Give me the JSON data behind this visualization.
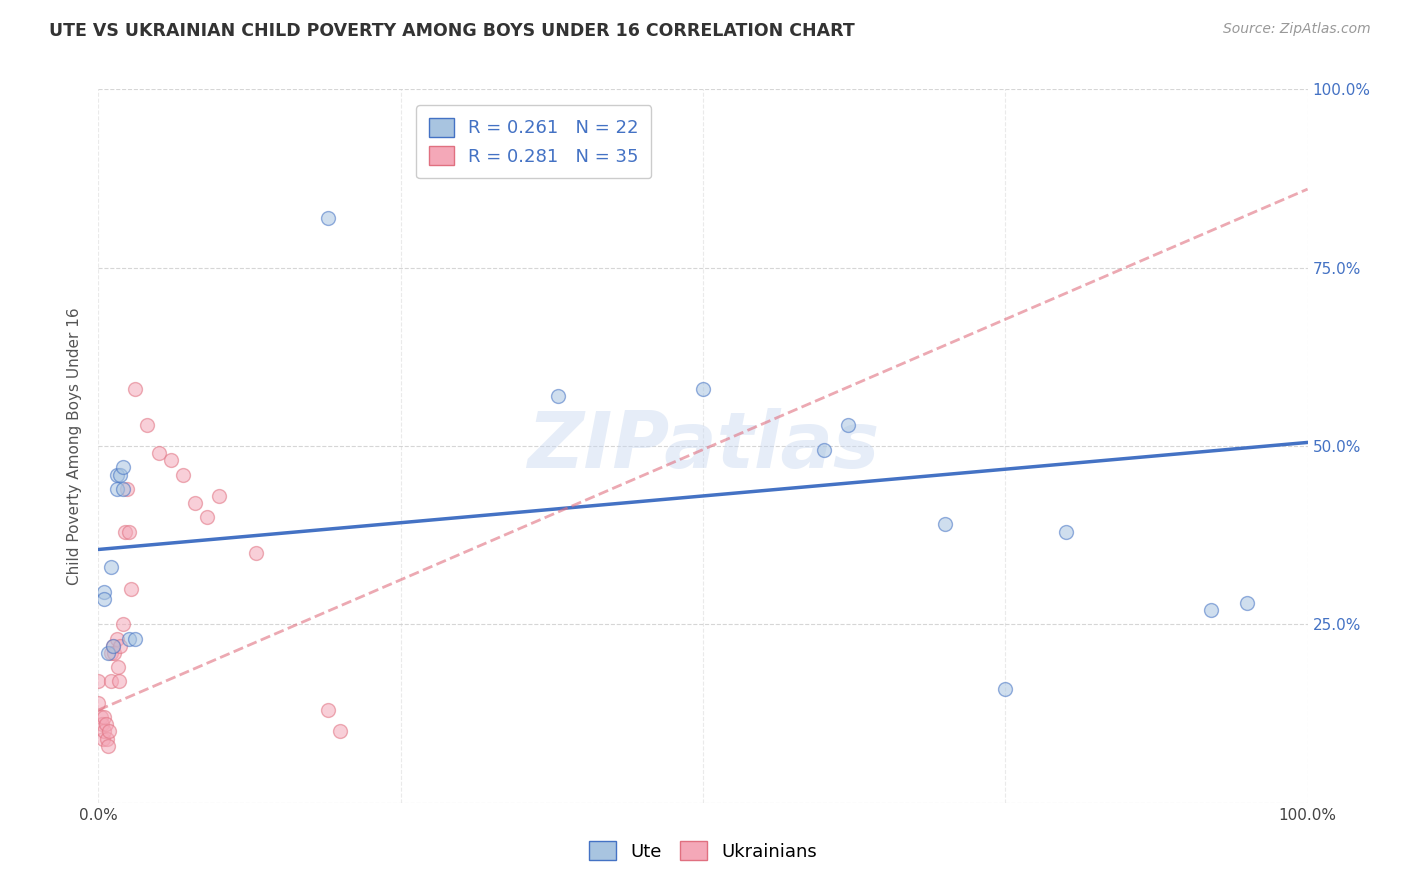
{
  "title": "UTE VS UKRAINIAN CHILD POVERTY AMONG BOYS UNDER 16 CORRELATION CHART",
  "source": "Source: ZipAtlas.com",
  "ylabel": "Child Poverty Among Boys Under 16",
  "watermark": "ZIPatlas",
  "legend_r_ute": "R = 0.261",
  "legend_n_ute": "N = 22",
  "legend_r_ukr": "R = 0.281",
  "legend_n_ukr": "N = 35",
  "ute_color": "#a8c4e0",
  "ukr_color": "#f4a8b8",
  "line_ute_color": "#4472c4",
  "line_ukr_color": "#e07080",
  "ute_x": [
    0.005,
    0.005,
    0.008,
    0.01,
    0.012,
    0.015,
    0.015,
    0.018,
    0.02,
    0.02,
    0.025,
    0.03,
    0.19,
    0.38,
    0.5,
    0.62,
    0.7,
    0.75,
    0.8,
    0.92,
    0.95,
    0.6
  ],
  "ute_y": [
    0.295,
    0.285,
    0.21,
    0.33,
    0.22,
    0.46,
    0.44,
    0.46,
    0.44,
    0.47,
    0.23,
    0.23,
    0.82,
    0.57,
    0.58,
    0.53,
    0.39,
    0.16,
    0.38,
    0.27,
    0.28,
    0.495
  ],
  "ukr_x": [
    0.0,
    0.0,
    0.002,
    0.003,
    0.004,
    0.005,
    0.005,
    0.006,
    0.007,
    0.008,
    0.009,
    0.01,
    0.01,
    0.012,
    0.013,
    0.015,
    0.016,
    0.017,
    0.018,
    0.02,
    0.022,
    0.024,
    0.025,
    0.027,
    0.03,
    0.04,
    0.05,
    0.06,
    0.07,
    0.08,
    0.09,
    0.1,
    0.13,
    0.19,
    0.2
  ],
  "ukr_y": [
    0.17,
    0.14,
    0.12,
    0.11,
    0.09,
    0.12,
    0.1,
    0.11,
    0.09,
    0.08,
    0.1,
    0.21,
    0.17,
    0.22,
    0.21,
    0.23,
    0.19,
    0.17,
    0.22,
    0.25,
    0.38,
    0.44,
    0.38,
    0.3,
    0.58,
    0.53,
    0.49,
    0.48,
    0.46,
    0.42,
    0.4,
    0.43,
    0.35,
    0.13,
    0.1
  ],
  "ute_line_x": [
    0.0,
    1.0
  ],
  "ute_line_y": [
    0.355,
    0.505
  ],
  "ukr_line_x": [
    0.0,
    1.0
  ],
  "ukr_line_y": [
    0.13,
    0.86
  ],
  "xlim": [
    0.0,
    1.0
  ],
  "ylim": [
    0.0,
    1.0
  ],
  "xticks": [
    0.0,
    0.25,
    0.5,
    0.75,
    1.0
  ],
  "xticklabels": [
    "0.0%",
    "",
    "",
    "",
    "100.0%"
  ],
  "ytick_positions": [
    0.0,
    0.25,
    0.5,
    0.75,
    1.0
  ],
  "yticklabels_right": [
    "",
    "25.0%",
    "50.0%",
    "75.0%",
    "100.0%"
  ],
  "marker_size": 100,
  "marker_alpha": 0.55,
  "background_color": "#ffffff",
  "grid_color": "#cccccc"
}
